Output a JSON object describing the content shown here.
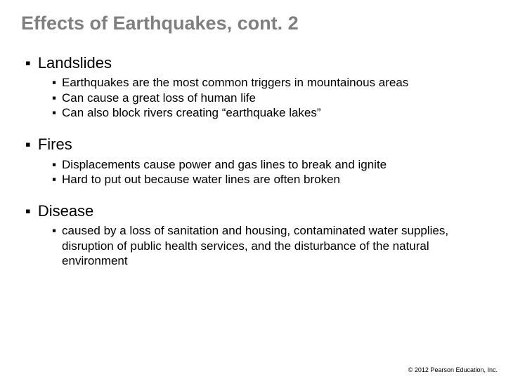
{
  "title": "Effects of Earthquakes, cont. 2",
  "sections": [
    {
      "heading": "Landslides",
      "items": [
        "Earthquakes are the most common triggers in mountainous areas",
        "Can cause a great loss of human life",
        "Can also block rivers creating “earthquake lakes”"
      ]
    },
    {
      "heading": "Fires",
      "items": [
        "Displacements cause power and gas lines to break and ignite",
        "Hard to put out because water lines are often broken"
      ]
    },
    {
      "heading": "Disease",
      "items": [
        "caused by a loss of sanitation and housing, contaminated water supplies, disruption of public health services, and the disturbance of the natural environment"
      ]
    }
  ],
  "footer": "© 2012 Pearson Education, Inc.",
  "bullet_marker": "▪",
  "colors": {
    "title": "#7f7f7f",
    "text": "#000000",
    "background": "#ffffff"
  },
  "fontsizes": {
    "title": 27,
    "level1": 22,
    "level2": 17,
    "footer": 9
  }
}
